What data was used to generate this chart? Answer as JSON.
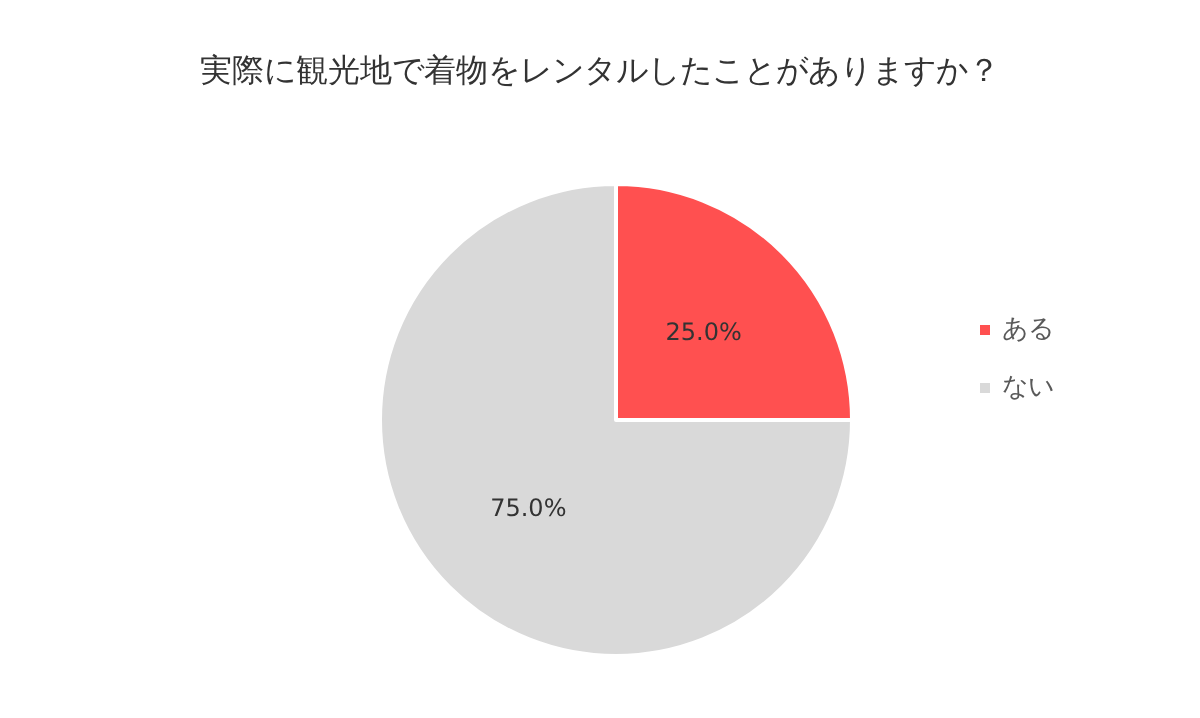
{
  "chart_data": {
    "type": "pie",
    "title": "実際に観光地で着物をレンタルしたことがありますか？",
    "categories": [
      "ある",
      "ない"
    ],
    "values": [
      25,
      75
    ],
    "colors": [
      "#ff5050",
      "#d9d9d9"
    ],
    "value_labels": [
      "25.0%",
      "75.0%"
    ],
    "legend": "right"
  }
}
